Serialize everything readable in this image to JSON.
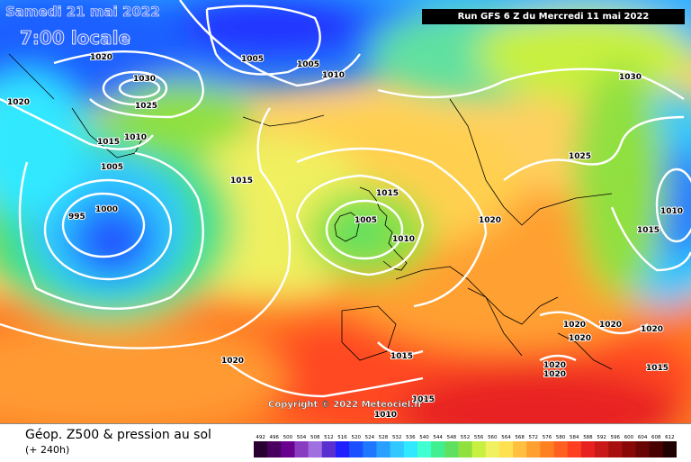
{
  "header": {
    "date_label": "Samedi 21 mai 2022",
    "local_time_label": "7:00 locale",
    "run_label": "Run GFS 6 Z du Mercredi 11 mai 2022"
  },
  "footer": {
    "copyright": "Copyright © 2022 Meteociel.fr",
    "product_label": "Géop. Z500 & pression au sol",
    "lead_time_label": "(+ 240h)"
  },
  "legend": {
    "ticks": [
      "492",
      "496",
      "500",
      "504",
      "508",
      "512",
      "516",
      "520",
      "524",
      "528",
      "532",
      "536",
      "540",
      "544",
      "548",
      "552",
      "556",
      "560",
      "564",
      "568",
      "572",
      "576",
      "580",
      "584",
      "588",
      "592",
      "596",
      "600",
      "604",
      "608",
      "612"
    ],
    "colors": [
      "#2a0033",
      "#4a0060",
      "#6a0090",
      "#8a3cc0",
      "#a070e0",
      "#5a2fd0",
      "#2020ff",
      "#1a50ff",
      "#1e78ff",
      "#28a0ff",
      "#30c8ff",
      "#30e8ff",
      "#40ffd0",
      "#40f090",
      "#60e060",
      "#90e040",
      "#c8f040",
      "#f0f060",
      "#ffe050",
      "#ffc040",
      "#ffa030",
      "#ff8020",
      "#ff6020",
      "#ff4020",
      "#e82020",
      "#c81818",
      "#a81010",
      "#880808",
      "#680404",
      "#480000",
      "#200000"
    ]
  },
  "isobar_labels": [
    {
      "text": "1020"
    },
    {
      "text": "1020"
    },
    {
      "text": "1030"
    },
    {
      "text": "1025"
    },
    {
      "text": "1015"
    },
    {
      "text": "1010"
    },
    {
      "text": "1005"
    },
    {
      "text": "1005"
    },
    {
      "text": "1005"
    },
    {
      "text": "1010"
    },
    {
      "text": "1030"
    },
    {
      "text": "1015"
    },
    {
      "text": "1000"
    },
    {
      "text": "995"
    },
    {
      "text": "1015"
    },
    {
      "text": "1005"
    },
    {
      "text": "1010"
    },
    {
      "text": "1020"
    },
    {
      "text": "1025"
    },
    {
      "text": "1010"
    },
    {
      "text": "1015"
    },
    {
      "text": "1020"
    },
    {
      "text": "1020"
    },
    {
      "text": "1020"
    },
    {
      "text": "1020"
    },
    {
      "text": "1020"
    },
    {
      "text": "1020"
    },
    {
      "text": "1015"
    },
    {
      "text": "1015"
    },
    {
      "text": "1015"
    },
    {
      "text": "1010"
    },
    {
      "text": "1020"
    }
  ]
}
